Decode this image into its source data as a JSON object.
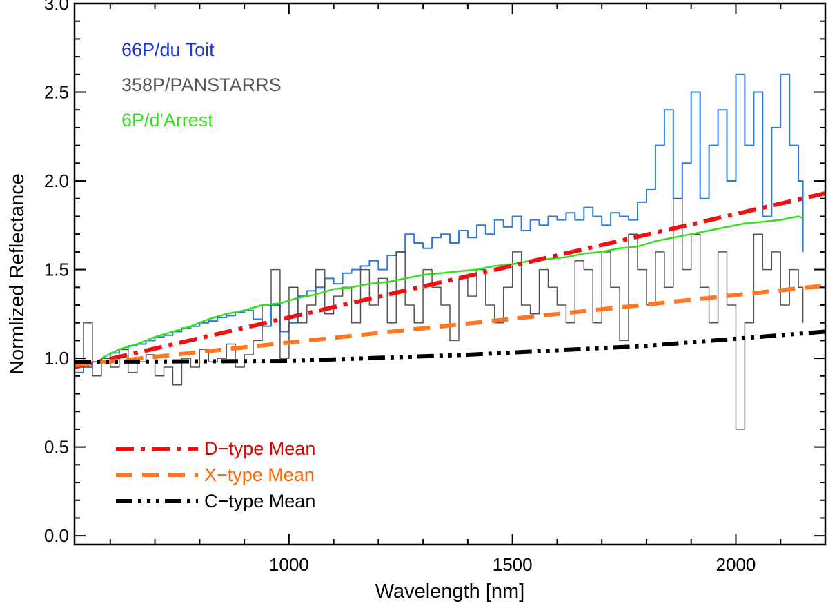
{
  "chart_data": {
    "type": "line",
    "title": "",
    "xlabel": "Wavelength [nm]",
    "ylabel": "Normlized Reflectance",
    "xlim": [
      520,
      2200
    ],
    "ylim": [
      -0.05,
      3.0
    ],
    "xticks": [
      1000,
      1500,
      2000
    ],
    "xtick_labels": [
      "1000",
      "1500",
      "2000"
    ],
    "yticks": [
      0.0,
      0.5,
      1.0,
      1.5,
      2.0,
      2.5,
      3.0
    ],
    "ytick_labels": [
      "0.0",
      "0.5",
      "1.0",
      "1.5",
      "2.0",
      "2.5",
      "3.0"
    ],
    "grid": false,
    "legend_top_left": [
      {
        "name": "66P/du Toit",
        "color": "#1a35d8"
      },
      {
        "name": "358P/PANSTARRS",
        "color": "#555555"
      },
      {
        "name": "6P/d'Arrest",
        "color": "#33e01c"
      }
    ],
    "legend_bottom_left": [
      {
        "name": "D−type Mean",
        "color": "#ee1111",
        "text_color": "#dd0000",
        "dash": "dash-dot"
      },
      {
        "name": "X−type Mean",
        "color": "#ff7722",
        "text_color": "#ff6600",
        "dash": "dashed"
      },
      {
        "name": "C−type Mean",
        "color": "#000000",
        "text_color": "#000000",
        "dash": "dash-dot-dot-dot"
      }
    ],
    "series": [
      {
        "name": "66P/du Toit",
        "color": "#2a7ae0",
        "style": "step",
        "width": 2,
        "x": [
          520,
          540,
          560,
          580,
          600,
          620,
          640,
          660,
          680,
          700,
          720,
          740,
          760,
          780,
          800,
          820,
          840,
          860,
          880,
          900,
          920,
          940,
          960,
          980,
          1000,
          1020,
          1040,
          1060,
          1080,
          1100,
          1120,
          1140,
          1160,
          1180,
          1200,
          1220,
          1240,
          1260,
          1280,
          1300,
          1320,
          1340,
          1360,
          1380,
          1400,
          1420,
          1440,
          1460,
          1480,
          1500,
          1520,
          1540,
          1560,
          1580,
          1600,
          1620,
          1640,
          1660,
          1680,
          1700,
          1720,
          1740,
          1760,
          1780,
          1800,
          1820,
          1840,
          1860,
          1880,
          1900,
          1920,
          1940,
          1960,
          1980,
          2000,
          2020,
          2040,
          2060,
          2080,
          2100,
          2120,
          2140,
          2150
        ],
        "y": [
          0.92,
          0.95,
          0.98,
          1.0,
          1.03,
          1.05,
          1.07,
          1.08,
          1.1,
          1.12,
          1.13,
          1.15,
          1.17,
          1.18,
          1.2,
          1.21,
          1.23,
          1.24,
          1.26,
          1.27,
          1.22,
          1.18,
          1.3,
          1.15,
          1.2,
          1.35,
          1.38,
          1.4,
          1.45,
          1.42,
          1.48,
          1.5,
          1.52,
          1.55,
          1.5,
          1.58,
          1.6,
          1.7,
          1.65,
          1.62,
          1.68,
          1.7,
          1.65,
          1.72,
          1.68,
          1.75,
          1.7,
          1.78,
          1.74,
          1.8,
          1.72,
          1.78,
          1.75,
          1.8,
          1.78,
          1.82,
          1.78,
          1.85,
          1.8,
          1.75,
          1.82,
          1.8,
          1.78,
          1.88,
          1.95,
          2.2,
          2.4,
          1.9,
          2.1,
          2.5,
          1.9,
          2.2,
          2.4,
          2.0,
          2.6,
          2.2,
          2.5,
          1.8,
          2.3,
          2.6,
          2.2,
          2.0,
          1.6
        ]
      },
      {
        "name": "358P/PANSTARRS",
        "color": "#555555",
        "style": "step",
        "width": 1.5,
        "x": [
          520,
          540,
          560,
          580,
          600,
          620,
          640,
          660,
          680,
          700,
          720,
          740,
          760,
          780,
          800,
          820,
          840,
          860,
          880,
          900,
          920,
          940,
          960,
          980,
          1000,
          1020,
          1040,
          1060,
          1080,
          1100,
          1120,
          1140,
          1160,
          1180,
          1200,
          1220,
          1240,
          1260,
          1280,
          1300,
          1320,
          1340,
          1360,
          1380,
          1400,
          1420,
          1440,
          1460,
          1480,
          1500,
          1520,
          1540,
          1560,
          1580,
          1600,
          1620,
          1640,
          1660,
          1680,
          1700,
          1720,
          1740,
          1760,
          1780,
          1800,
          1820,
          1840,
          1860,
          1880,
          1900,
          1920,
          1940,
          1960,
          1980,
          2000,
          2020,
          2040,
          2060,
          2080,
          2100,
          2120,
          2140,
          2150
        ],
        "y": [
          0.95,
          1.2,
          0.9,
          1.0,
          0.95,
          1.05,
          0.92,
          0.98,
          1.02,
          0.9,
          0.95,
          0.85,
          1.0,
          0.95,
          1.05,
          0.98,
          1.0,
          1.08,
          0.95,
          1.02,
          1.1,
          1.3,
          1.5,
          1.0,
          1.4,
          1.2,
          1.3,
          1.5,
          1.25,
          1.35,
          1.4,
          1.2,
          1.5,
          1.3,
          1.45,
          1.2,
          1.6,
          1.3,
          1.2,
          1.5,
          1.4,
          1.3,
          1.1,
          1.45,
          1.35,
          1.5,
          1.3,
          1.2,
          1.4,
          1.6,
          1.3,
          1.25,
          1.5,
          1.4,
          1.3,
          1.2,
          1.55,
          1.5,
          1.2,
          1.6,
          1.4,
          1.1,
          1.7,
          1.5,
          1.3,
          1.6,
          1.4,
          1.9,
          1.5,
          1.7,
          1.4,
          1.2,
          1.6,
          1.3,
          0.6,
          1.2,
          1.7,
          1.5,
          1.6,
          1.3,
          1.5,
          1.4,
          1.2
        ]
      },
      {
        "name": "6P/d'Arrest",
        "color": "#33e01c",
        "style": "line",
        "width": 2.5,
        "x": [
          580,
          620,
          660,
          700,
          740,
          780,
          820,
          860,
          900,
          940,
          980,
          1020,
          1060,
          1100,
          1140,
          1180,
          1220,
          1260,
          1300,
          1340,
          1380,
          1420,
          1460,
          1500,
          1540,
          1580,
          1620,
          1660,
          1700,
          1740,
          1780,
          1820,
          1860,
          1900,
          1940,
          1980,
          2020,
          2060,
          2100,
          2140,
          2150
        ],
        "y": [
          1.0,
          1.05,
          1.08,
          1.12,
          1.15,
          1.18,
          1.22,
          1.25,
          1.27,
          1.3,
          1.31,
          1.34,
          1.36,
          1.39,
          1.4,
          1.42,
          1.43,
          1.45,
          1.47,
          1.48,
          1.49,
          1.5,
          1.52,
          1.53,
          1.55,
          1.56,
          1.57,
          1.59,
          1.6,
          1.62,
          1.63,
          1.66,
          1.68,
          1.7,
          1.72,
          1.74,
          1.76,
          1.77,
          1.78,
          1.8,
          1.79
        ]
      },
      {
        "name": "D−type Mean",
        "color": "#ee1111",
        "style": "dash-dot",
        "width": 6,
        "x": [
          520,
          2200
        ],
        "y": [
          0.95,
          1.93
        ]
      },
      {
        "name": "X−type Mean",
        "color": "#ff7722",
        "style": "dashed",
        "width": 6,
        "x": [
          520,
          2200
        ],
        "y": [
          0.96,
          1.41
        ]
      },
      {
        "name": "C−type Mean",
        "color": "#000000",
        "style": "dash-dot-dot-dot",
        "width": 6,
        "x": [
          520,
          1000,
          1400,
          1800,
          2200
        ],
        "y": [
          0.98,
          0.985,
          1.02,
          1.07,
          1.15
        ]
      }
    ]
  }
}
